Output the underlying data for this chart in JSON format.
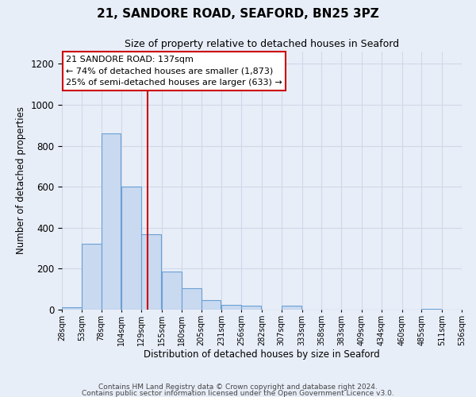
{
  "title_line1": "21, SANDORE ROAD, SEAFORD, BN25 3PZ",
  "title_line2": "Size of property relative to detached houses in Seaford",
  "xlabel": "Distribution of detached houses by size in Seaford",
  "ylabel": "Number of detached properties",
  "bin_edges": [
    28,
    53,
    78,
    104,
    129,
    155,
    180,
    205,
    231,
    256,
    282,
    307,
    333,
    358,
    383,
    409,
    434,
    460,
    485,
    511,
    536
  ],
  "bar_heights": [
    12,
    320,
    860,
    600,
    370,
    185,
    105,
    48,
    22,
    20,
    0,
    20,
    0,
    0,
    0,
    0,
    0,
    0,
    5,
    0
  ],
  "bar_color": "#c9d9f0",
  "bar_edge_color": "#6aa0d4",
  "vline_x": 137,
  "vline_color": "#cc0000",
  "annotation_title": "21 SANDORE ROAD: 137sqm",
  "annotation_line1": "← 74% of detached houses are smaller (1,873)",
  "annotation_line2": "25% of semi-detached houses are larger (633) →",
  "annotation_box_color": "#ffffff",
  "annotation_box_edge_color": "#cc0000",
  "ylim": [
    0,
    1260
  ],
  "yticks": [
    0,
    200,
    400,
    600,
    800,
    1000,
    1200
  ],
  "grid_color": "#d0d8e8",
  "bg_color": "#e8eef8",
  "footer_line1": "Contains HM Land Registry data © Crown copyright and database right 2024.",
  "footer_line2": "Contains public sector information licensed under the Open Government Licence v3.0.",
  "tick_labels": [
    "28sqm",
    "53sqm",
    "78sqm",
    "104sqm",
    "129sqm",
    "155sqm",
    "180sqm",
    "205sqm",
    "231sqm",
    "256sqm",
    "282sqm",
    "307sqm",
    "333sqm",
    "358sqm",
    "383sqm",
    "409sqm",
    "434sqm",
    "460sqm",
    "485sqm",
    "511sqm",
    "536sqm"
  ]
}
